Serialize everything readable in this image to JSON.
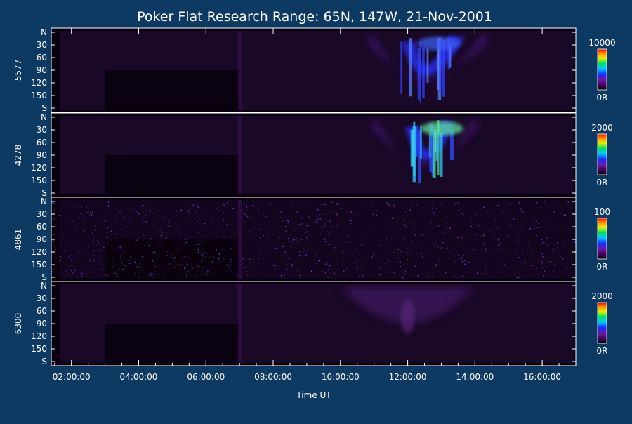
{
  "chart_data": {
    "type": "heatmap",
    "title": "Poker Flat Research Range: 65N, 147W, 21-Nov-2001",
    "xlabel": "Time UT",
    "x_ticks": [
      "02:00:00",
      "04:00:00",
      "06:00:00",
      "08:00:00",
      "10:00:00",
      "12:00:00",
      "14:00:00",
      "16:00:00"
    ],
    "x_range_hours": [
      1.4,
      17.0
    ],
    "y_ticks": [
      "N",
      "30",
      "60",
      "90",
      "120",
      "150",
      "S"
    ],
    "y_range": [
      0,
      180
    ],
    "colormap": "black-purple-blue-cyan-green-yellow-orange-red",
    "panels": [
      {
        "label": "5577",
        "cbar_max": "10000",
        "cbar_min": "0R",
        "features": [
          {
            "t_start": 11.3,
            "t_mid": 12.4,
            "t_end": 13.9,
            "intensity": "high",
            "note": "arc moving equatorward"
          }
        ]
      },
      {
        "label": "4278",
        "cbar_max": "2000",
        "cbar_min": "0R",
        "features": [
          {
            "t_start": 11.4,
            "t_mid": 12.5,
            "t_end": 13.6,
            "intensity": "very high",
            "note": "brightest emission"
          }
        ]
      },
      {
        "label": "4861",
        "cbar_max": "100",
        "cbar_min": "0R",
        "features": [
          {
            "t_start": 1.4,
            "t_mid": 9.0,
            "t_end": 17.0,
            "intensity": "noise",
            "note": "sparse speckle"
          }
        ]
      },
      {
        "label": "6300",
        "cbar_max": "2000",
        "cbar_min": "0R",
        "features": [
          {
            "t_start": 10.0,
            "t_mid": 12.0,
            "t_end": 14.0,
            "intensity": "low",
            "note": "diffuse glow"
          }
        ]
      }
    ]
  }
}
